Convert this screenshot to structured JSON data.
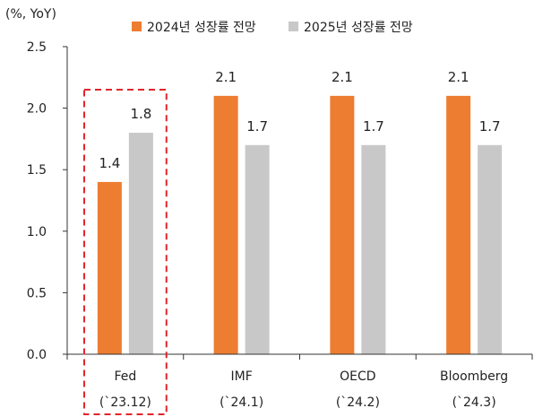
{
  "chart_data": {
    "type": "bar",
    "unit_label": "(%, YoY)",
    "categories": [
      "Fed",
      "IMF",
      "OECD",
      "Bloomberg"
    ],
    "category_sublabels": [
      "(`23.12)",
      "(`24.1)",
      "(`24.2)",
      "(`24.3)"
    ],
    "series": [
      {
        "name": "2024년 성장률 전망",
        "color": "#ED7D31",
        "values": [
          1.4,
          2.1,
          2.1,
          2.1
        ]
      },
      {
        "name": "2025년 성장률 전망",
        "color": "#C8C8C8",
        "values": [
          1.8,
          1.7,
          1.7,
          1.7
        ]
      }
    ],
    "data_labels": [
      [
        "1.4",
        "2.1",
        "2.1",
        "2.1"
      ],
      [
        "1.8",
        "1.7",
        "1.7",
        "1.7"
      ]
    ],
    "yticks": [
      "0.0",
      "0.5",
      "1.0",
      "1.5",
      "2.0",
      "2.5"
    ],
    "ylim": [
      0,
      2.5
    ],
    "grid": false,
    "legend_position": "top",
    "highlight_category": "Fed",
    "highlight_color": "#E0262B"
  }
}
